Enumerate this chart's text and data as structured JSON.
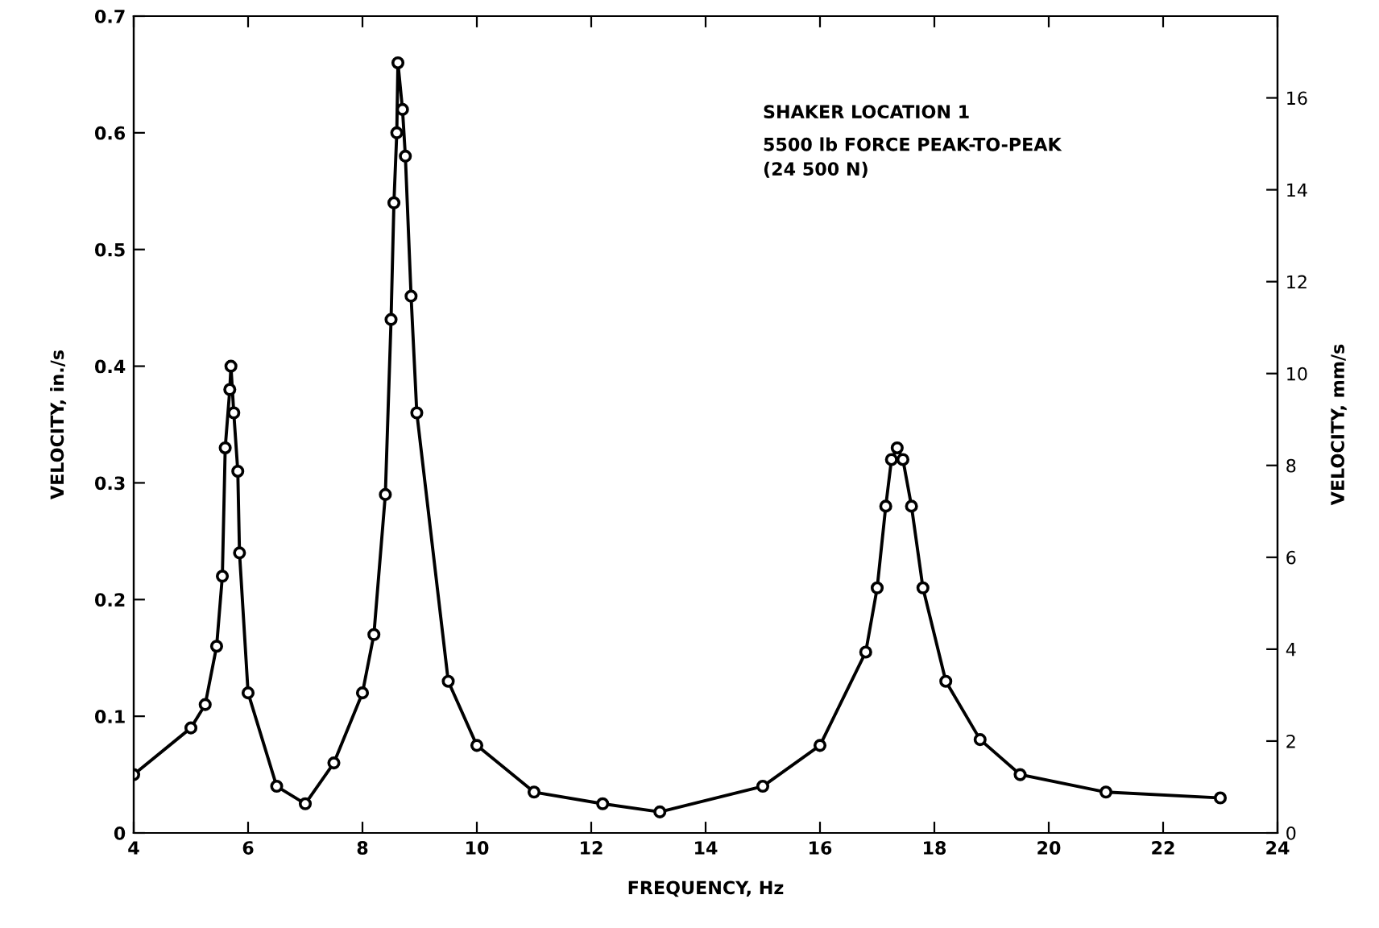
{
  "chart_data": {
    "type": "line",
    "xlabel": "FREQUENCY, Hz",
    "ylabel": "VELOCITY, in./s",
    "y2label": "VELOCITY, mm/s",
    "annotations": [
      "SHAKER LOCATION 1",
      "5500 lb FORCE PEAK-TO-PEAK",
      "(24 500 N)"
    ],
    "x": [
      4.0,
      5.0,
      5.25,
      5.45,
      5.55,
      5.6,
      5.68,
      5.7,
      5.75,
      5.82,
      5.85,
      6.0,
      6.5,
      7.0,
      7.5,
      8.0,
      8.2,
      8.4,
      8.5,
      8.55,
      8.6,
      8.62,
      8.7,
      8.75,
      8.85,
      8.95,
      9.5,
      10.0,
      11.0,
      12.2,
      13.2,
      15.0,
      16.0,
      16.8,
      17.0,
      17.15,
      17.25,
      17.35,
      17.45,
      17.6,
      17.8,
      18.2,
      18.8,
      19.5,
      21.0,
      23.0
    ],
    "series": [
      {
        "color": "#000000",
        "values": [
          0.05,
          0.09,
          0.11,
          0.16,
          0.22,
          0.33,
          0.38,
          0.4,
          0.36,
          0.31,
          0.24,
          0.12,
          0.04,
          0.025,
          0.06,
          0.12,
          0.17,
          0.29,
          0.44,
          0.54,
          0.6,
          0.66,
          0.62,
          0.58,
          0.46,
          0.36,
          0.13,
          0.075,
          0.035,
          0.025,
          0.018,
          0.04,
          0.075,
          0.155,
          0.21,
          0.28,
          0.32,
          0.33,
          0.32,
          0.28,
          0.21,
          0.13,
          0.08,
          0.05,
          0.035,
          0.03
        ]
      }
    ],
    "marker": "circle",
    "line_style": "solid",
    "grid": false,
    "legend": false,
    "xlim": [
      4,
      24
    ],
    "xticks": [
      4,
      6,
      8,
      10,
      12,
      14,
      16,
      18,
      20,
      22,
      24
    ],
    "ylim": [
      0,
      0.7
    ],
    "yticks": [
      0,
      0.1,
      0.2,
      0.3,
      0.4,
      0.5,
      0.6,
      0.7
    ],
    "y2lim": [
      0,
      17.78
    ],
    "y2ticks": [
      0,
      2,
      4,
      6,
      8,
      10,
      12,
      14,
      16
    ]
  }
}
